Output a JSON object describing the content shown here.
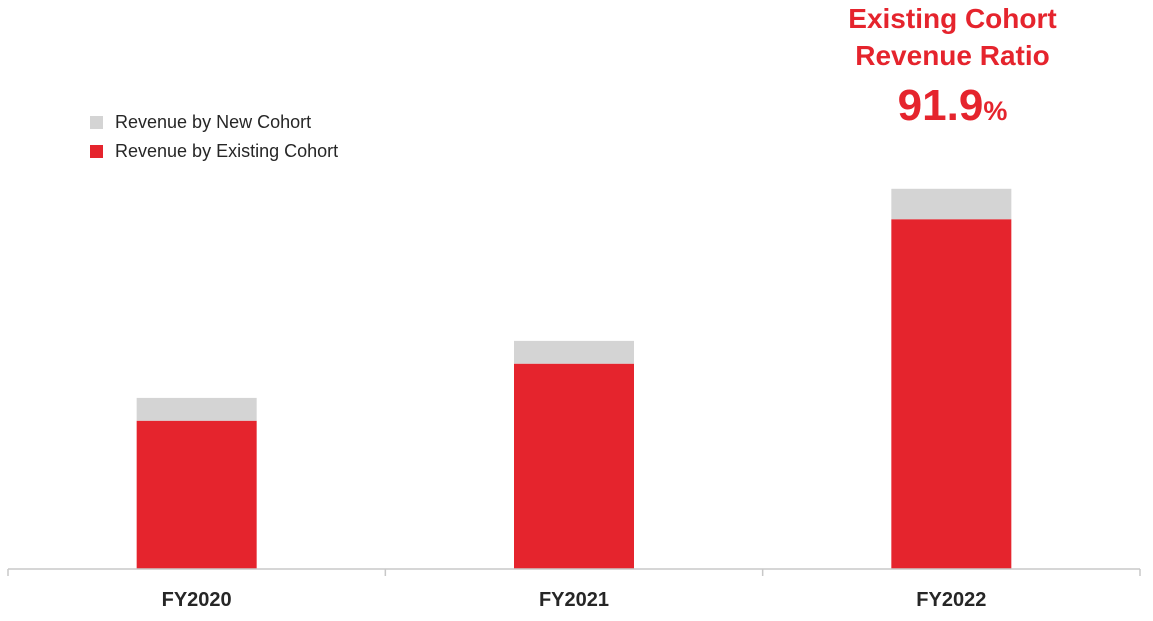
{
  "callout": {
    "title_line1": "Existing Cohort",
    "title_line2": "Revenue Ratio",
    "value": "91.9",
    "unit": "%"
  },
  "colors": {
    "existing": "#e5242d",
    "new": "#d4d4d4",
    "axis": "#c8c8c8",
    "text": "#262626"
  },
  "chart_data": {
    "type": "bar",
    "stacked": true,
    "categories": [
      "FY2020",
      "FY2021",
      "FY2022"
    ],
    "series": [
      {
        "name": "Revenue by New Cohort",
        "values": [
          0.6,
          0.6,
          0.8
        ],
        "color": "#d4d4d4"
      },
      {
        "name": "Revenue by Existing Cohort",
        "values": [
          3.9,
          5.4,
          9.2
        ],
        "color": "#e5242d"
      }
    ],
    "ylim": [
      0,
      10.1
    ],
    "grid": false,
    "legend_position": "top-left",
    "title": "",
    "xlabel": "",
    "ylabel": ""
  }
}
